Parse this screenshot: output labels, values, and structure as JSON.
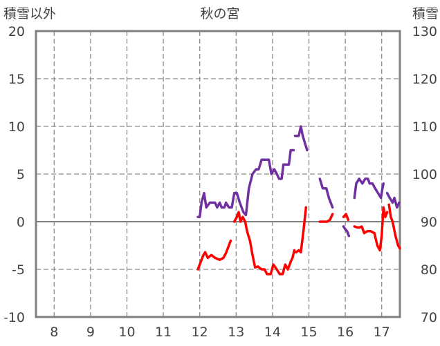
{
  "chart_data": {
    "type": "line",
    "title": "秋の宮",
    "left_axis_label": "積雪以外",
    "right_axis_label": "積雪",
    "x_ticks": [
      "8",
      "9",
      "10",
      "11",
      "12",
      "13",
      "14",
      "15",
      "16",
      "17"
    ],
    "y_left_ticks": [
      "20",
      "15",
      "10",
      "5",
      "0",
      "-5",
      "-10"
    ],
    "y_right_ticks": [
      "130",
      "120",
      "110",
      "100",
      "90",
      "80",
      "70"
    ],
    "xlim": [
      7.5,
      17.5
    ],
    "ylim_left": [
      -10,
      20
    ],
    "ylim_right": [
      70,
      130
    ],
    "grid": true,
    "series": [
      {
        "color": "#7030a0",
        "axis": "left",
        "segments": [
          [
            [
              11.95,
              0.5
            ],
            [
              12.0,
              0.5
            ],
            [
              12.05,
              2.0
            ],
            [
              12.12,
              3.0
            ],
            [
              12.18,
              1.5
            ],
            [
              12.28,
              2.0
            ],
            [
              12.42,
              2.0
            ],
            [
              12.48,
              1.5
            ],
            [
              12.55,
              2.0
            ],
            [
              12.6,
              1.5
            ],
            [
              12.68,
              1.5
            ],
            [
              12.72,
              2.0
            ],
            [
              12.8,
              1.5
            ],
            [
              12.88,
              1.5
            ],
            [
              12.95,
              3.0
            ],
            [
              13.02,
              3.0
            ],
            [
              13.1,
              2.0
            ],
            [
              13.15,
              1.5
            ],
            [
              13.2,
              1.0
            ],
            [
              13.27,
              0.7
            ],
            [
              13.35,
              3.5
            ],
            [
              13.45,
              5.0
            ],
            [
              13.55,
              5.5
            ],
            [
              13.62,
              5.5
            ],
            [
              13.7,
              6.5
            ],
            [
              13.9,
              6.5
            ],
            [
              13.97,
              5.0
            ],
            [
              14.05,
              5.5
            ],
            [
              14.12,
              5.0
            ],
            [
              14.18,
              4.5
            ],
            [
              14.25,
              4.5
            ],
            [
              14.3,
              6.0
            ],
            [
              14.45,
              6.0
            ],
            [
              14.5,
              7.5
            ],
            [
              14.58,
              7.5
            ]
          ],
          [
            [
              14.62,
              9.0
            ],
            [
              14.72,
              9.0
            ],
            [
              14.78,
              10.0
            ],
            [
              14.83,
              9.0
            ],
            [
              14.95,
              7.5
            ]
          ],
          [
            [
              15.3,
              4.5
            ],
            [
              15.38,
              3.5
            ],
            [
              15.48,
              3.5
            ],
            [
              15.55,
              2.5
            ],
            [
              15.65,
              1.5
            ]
          ],
          [
            [
              15.95,
              -0.5
            ],
            [
              16.0,
              -0.8
            ],
            [
              16.05,
              -1.0
            ],
            [
              16.1,
              -1.5
            ]
          ],
          [
            [
              16.25,
              2.5
            ],
            [
              16.3,
              4.0
            ],
            [
              16.38,
              4.5
            ],
            [
              16.47,
              4.0
            ],
            [
              16.55,
              4.5
            ],
            [
              16.62,
              4.5
            ],
            [
              16.67,
              4.0
            ],
            [
              16.75,
              4.0
            ],
            [
              16.82,
              3.5
            ],
            [
              16.9,
              3.0
            ],
            [
              16.98,
              2.5
            ],
            [
              17.02,
              3.5
            ],
            [
              17.05,
              4.0
            ]
          ],
          [
            [
              17.15,
              3.0
            ],
            [
              17.22,
              2.5
            ],
            [
              17.3,
              2.0
            ],
            [
              17.35,
              2.5
            ],
            [
              17.42,
              1.5
            ],
            [
              17.48,
              2.0
            ]
          ]
        ]
      },
      {
        "color": "#ff0000",
        "axis": "left",
        "segments": [
          [
            [
              11.95,
              -5.0
            ],
            [
              12.05,
              -4.0
            ],
            [
              12.1,
              -3.5
            ],
            [
              12.15,
              -3.2
            ],
            [
              12.22,
              -3.8
            ],
            [
              12.32,
              -3.5
            ],
            [
              12.42,
              -3.8
            ],
            [
              12.55,
              -4.0
            ],
            [
              12.65,
              -3.8
            ],
            [
              12.72,
              -3.3
            ],
            [
              12.8,
              -2.5
            ],
            [
              12.85,
              -2.0
            ]
          ],
          [
            [
              12.95,
              0.0
            ],
            [
              13.02,
              0.5
            ],
            [
              13.07,
              1.0
            ],
            [
              13.12,
              0.0
            ],
            [
              13.18,
              0.5
            ],
            [
              13.25,
              0.0
            ],
            [
              13.3,
              -1.0
            ],
            [
              13.38,
              -2.0
            ],
            [
              13.45,
              -3.5
            ],
            [
              13.52,
              -4.8
            ],
            [
              13.6,
              -4.7
            ],
            [
              13.7,
              -5.0
            ],
            [
              13.78,
              -5.0
            ],
            [
              13.85,
              -5.5
            ],
            [
              13.95,
              -5.5
            ],
            [
              14.02,
              -4.5
            ],
            [
              14.08,
              -4.8
            ],
            [
              14.15,
              -5.2
            ],
            [
              14.2,
              -5.5
            ],
            [
              14.28,
              -5.5
            ],
            [
              14.35,
              -4.5
            ],
            [
              14.42,
              -5.0
            ],
            [
              14.5,
              -4.2
            ],
            [
              14.55,
              -3.8
            ],
            [
              14.6,
              -3.0
            ]
          ],
          [
            [
              14.65,
              -3.2
            ],
            [
              14.72,
              -3.0
            ],
            [
              14.78,
              -3.2
            ],
            [
              14.85,
              -1.0
            ],
            [
              14.92,
              1.5
            ]
          ],
          [
            [
              15.3,
              0.0
            ],
            [
              15.4,
              0.0
            ],
            [
              15.5,
              0.0
            ],
            [
              15.58,
              0.2
            ],
            [
              15.65,
              0.8
            ]
          ],
          [
            [
              15.95,
              0.5
            ],
            [
              16.02,
              0.8
            ],
            [
              16.08,
              0.2
            ]
          ],
          [
            [
              16.25,
              -0.5
            ],
            [
              16.32,
              -0.6
            ],
            [
              16.4,
              -0.6
            ],
            [
              16.45,
              -0.5
            ],
            [
              16.52,
              -1.2
            ],
            [
              16.6,
              -1.0
            ],
            [
              16.7,
              -1.0
            ],
            [
              16.8,
              -1.2
            ],
            [
              16.88,
              -2.5
            ],
            [
              16.95,
              -3.0
            ],
            [
              17.0,
              -1.5
            ],
            [
              17.05,
              1.5
            ],
            [
              17.1,
              0.5
            ],
            [
              17.15,
              1.0
            ]
          ],
          [
            [
              17.2,
              1.8
            ],
            [
              17.25,
              0.5
            ],
            [
              17.3,
              0.0
            ],
            [
              17.38,
              -1.5
            ],
            [
              17.45,
              -2.5
            ],
            [
              17.5,
              -2.8
            ]
          ]
        ]
      }
    ]
  }
}
